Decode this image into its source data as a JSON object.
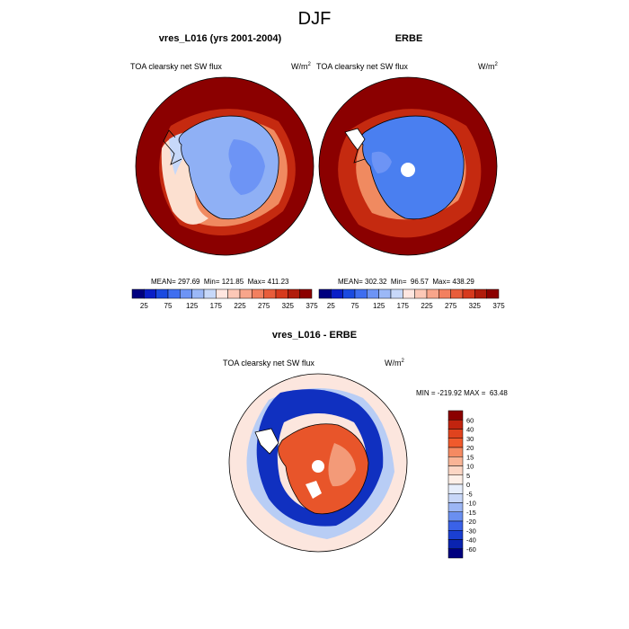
{
  "figure": {
    "title": "DJF"
  },
  "chart_data": [
    {
      "type": "heatmap",
      "title": "vres_L016 (yrs 2001-2004)",
      "variable": "TOA clearsky net SW flux",
      "units": "W/m",
      "units_exp": "2",
      "stats_text": "MEAN= 297.69  Min= 121.85  Max= 411.23",
      "stats": {
        "mean": 297.69,
        "min": 121.85,
        "max": 411.23
      },
      "colorbar": {
        "colors": [
          "#00007f",
          "#0a1fc7",
          "#1a4ae0",
          "#3f6ef0",
          "#6d94f5",
          "#9bb8f7",
          "#c7d8f9",
          "#ffe6e0",
          "#fcc8b7",
          "#f8a58b",
          "#f2805f",
          "#e85d3b",
          "#d63a1d",
          "#b01c0c",
          "#8b0000"
        ],
        "tick_labels": [
          "25",
          "75",
          "125",
          "175",
          "225",
          "275",
          "325",
          "375"
        ]
      }
    },
    {
      "type": "heatmap",
      "title": "ERBE",
      "variable": "TOA clearsky net SW flux",
      "units": "W/m",
      "units_exp": "2",
      "stats_text": "MEAN= 302.32  Min=  96.57  Max= 438.29",
      "stats": {
        "mean": 302.32,
        "min": 96.57,
        "max": 438.29
      },
      "colorbar": {
        "colors": [
          "#00007f",
          "#0a1fc7",
          "#1a4ae0",
          "#3f6ef0",
          "#6d94f5",
          "#9bb8f7",
          "#c7d8f9",
          "#ffe6e0",
          "#fcc8b7",
          "#f8a58b",
          "#f2805f",
          "#e85d3b",
          "#d63a1d",
          "#b01c0c",
          "#8b0000"
        ],
        "tick_labels": [
          "25",
          "75",
          "125",
          "175",
          "225",
          "275",
          "325",
          "375"
        ]
      }
    },
    {
      "type": "heatmap",
      "title": "vres_L016 - ERBE",
      "variable": "TOA clearsky net SW flux",
      "units": "W/m",
      "units_exp": "2",
      "stats_text": "MIN = -219.92 MAX =  63.48",
      "stats": {
        "min": -219.92,
        "max": 63.48
      },
      "colorbar": {
        "colors": [
          "#8b0000",
          "#c1240f",
          "#e0431e",
          "#f05a2c",
          "#f58a62",
          "#f9b496",
          "#fcd6c4",
          "#fdefe7",
          "#e7eefb",
          "#c8d7f8",
          "#9cb6f4",
          "#6a8ff0",
          "#3a62e8",
          "#1a3fd2",
          "#0a23b0",
          "#00007f"
        ],
        "tick_labels": [
          "60",
          "40",
          "30",
          "20",
          "15",
          "10",
          "5",
          "0",
          "-5",
          "-10",
          "-15",
          "-20",
          "-30",
          "-40",
          "-60"
        ]
      }
    }
  ],
  "map_colors": {
    "ocean_far": "#8b0000",
    "ocean_mid": "#c52a10",
    "ocean_near": "#f08a60",
    "sea_ice": "#fce0d0",
    "ice_shelf": "#c7d8f9",
    "antarctica_model": "#8fb0f5",
    "antarctica_obs": "#4a7ff0",
    "antarctica_plateau": "#6d94f5",
    "diff_background": "#fce6de",
    "diff_blue_ring": "#1030c0",
    "diff_light_blue": "#b8cdf5",
    "diff_land": "#e8552a",
    "diff_land_light": "#f39a78"
  }
}
